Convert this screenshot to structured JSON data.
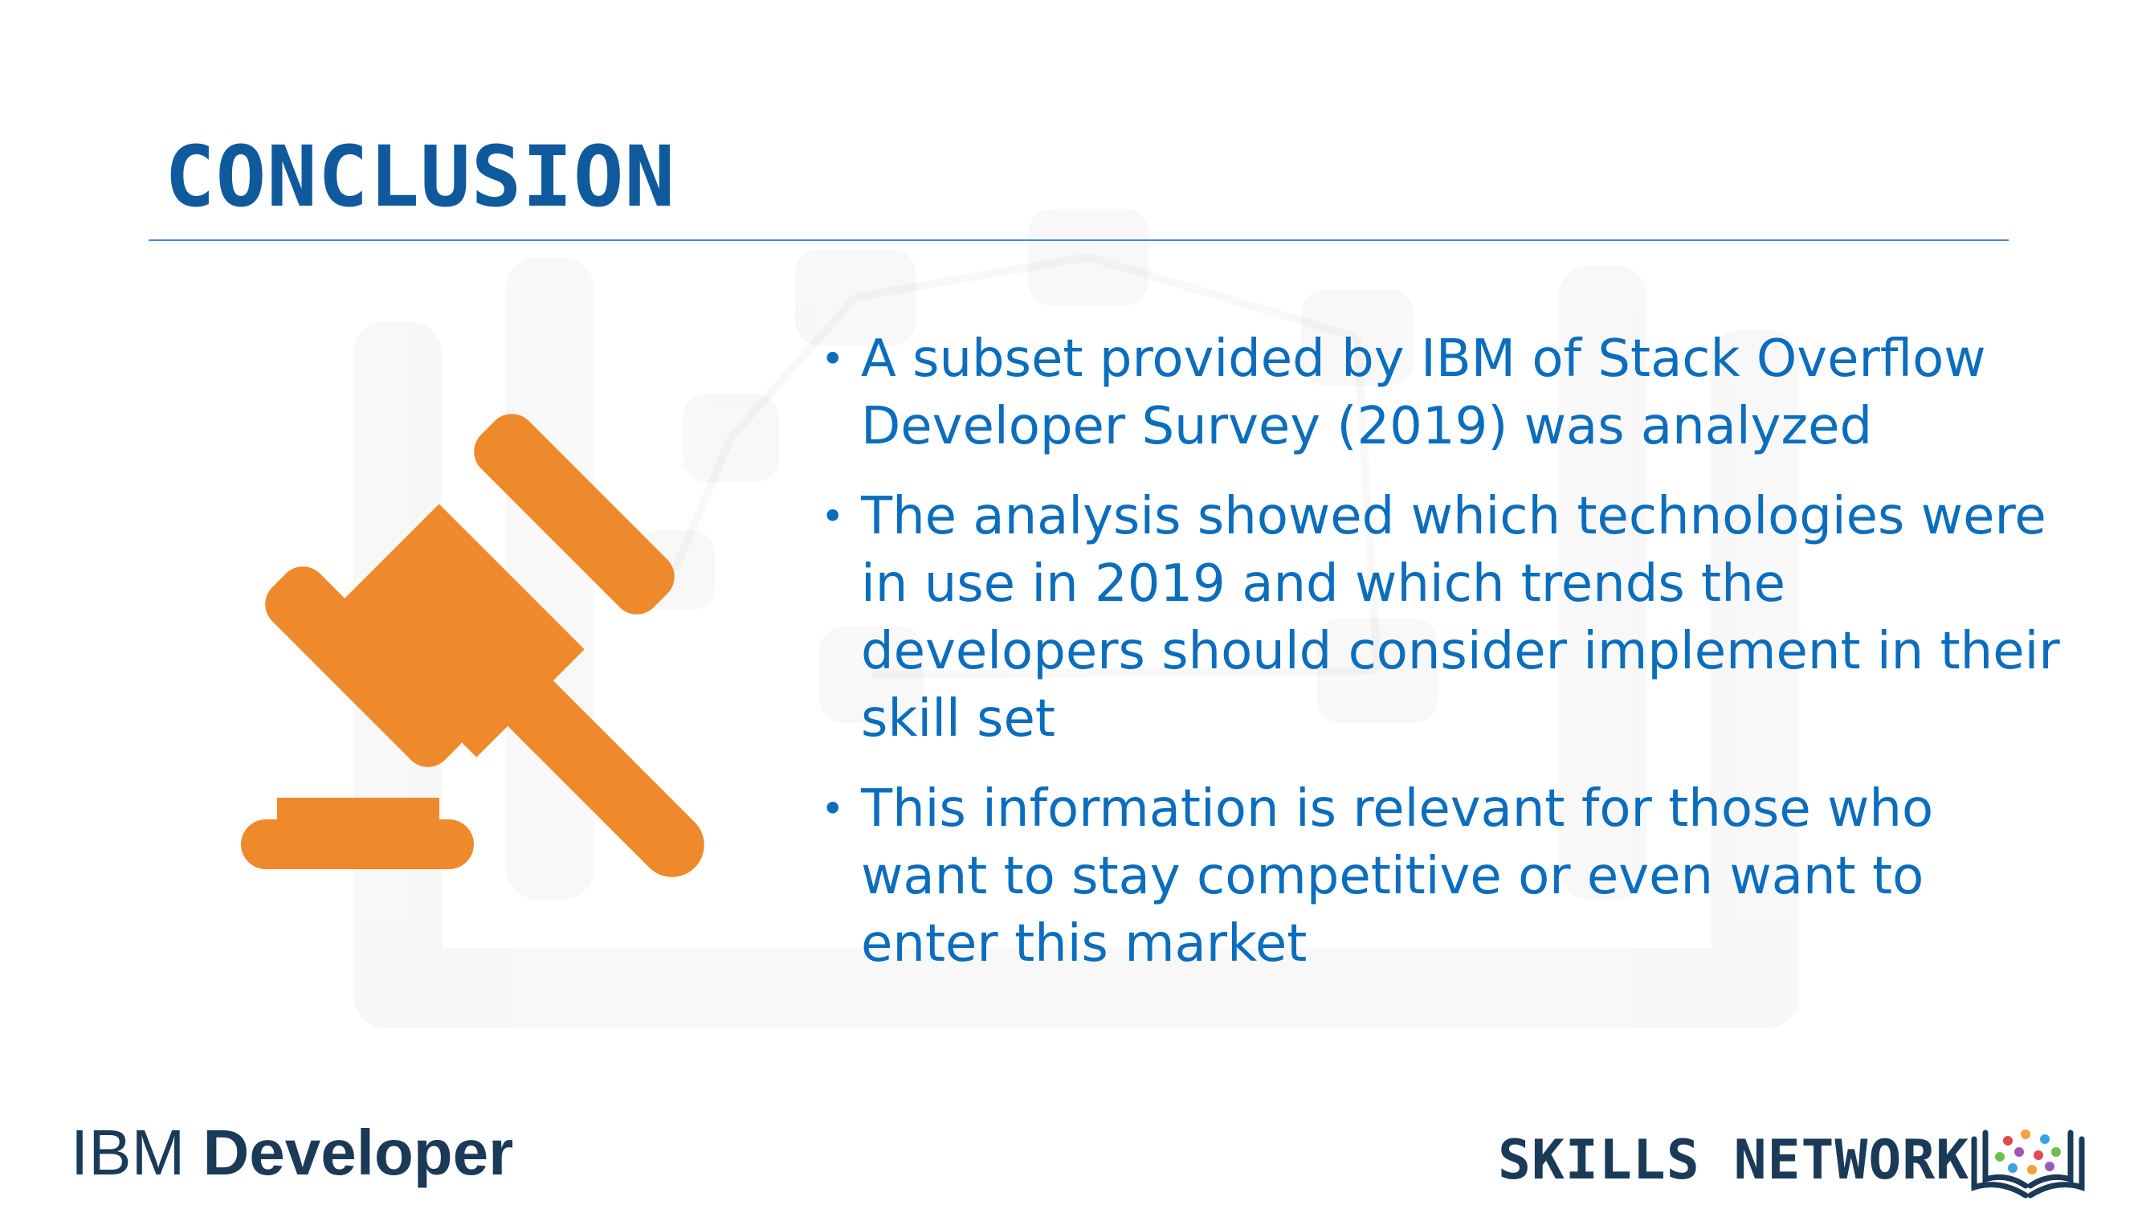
{
  "slide": {
    "title": "CONCLUSION",
    "bullets": [
      "A subset provided by IBM of Stack Overflow Developer Survey  (2019) was analyzed",
      "The analysis showed which technologies were in use in 2019 and which trends the developers should consider implement in their skill set",
      "This information is relevant for those who want to stay competitive or even want to enter this market"
    ],
    "bullet_marker": "•"
  },
  "footer": {
    "left_logo": {
      "part1": "IBM ",
      "part2": "Developer"
    },
    "right_logo": {
      "text": "SKILLS NETWORK",
      "icon": "book-network-icon"
    }
  },
  "icons": {
    "illustration": "gavel-icon"
  },
  "colors": {
    "title": "#0f5a9c",
    "bullet_text": "#0b6dbd",
    "rule": "#4a86d9",
    "gavel": "#ee8a2b",
    "logo": "#1b3a57"
  }
}
